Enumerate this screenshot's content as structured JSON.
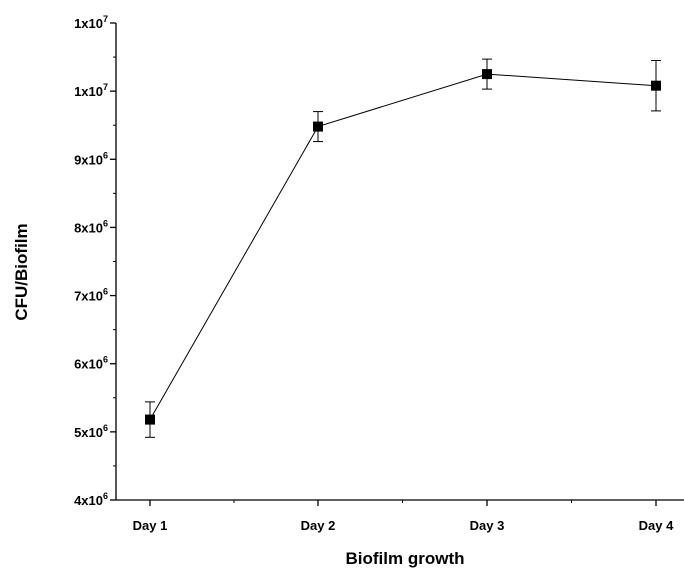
{
  "chart_data": {
    "type": "line",
    "title": "",
    "xlabel": "Biofilm growth",
    "ylabel": "CFU/Biofilm",
    "categories": [
      "Day 1",
      "Day 2",
      "Day 3",
      "Day 4"
    ],
    "series": [
      {
        "values": [
          5180000,
          9480000,
          10250000,
          10080000
        ],
        "error": [
          260000,
          220000,
          220000,
          370000
        ]
      }
    ],
    "ylim": [
      4000000,
      11000000
    ],
    "yticks": [
      {
        "value": 4000000,
        "base": "4x10",
        "exp": "6"
      },
      {
        "value": 5000000,
        "base": "5x10",
        "exp": "6"
      },
      {
        "value": 6000000,
        "base": "6x10",
        "exp": "6"
      },
      {
        "value": 7000000,
        "base": "7x10",
        "exp": "6"
      },
      {
        "value": 8000000,
        "base": "8x10",
        "exp": "6"
      },
      {
        "value": 9000000,
        "base": "9x10",
        "exp": "6"
      },
      {
        "value": 10000000,
        "base": "1x10",
        "exp": "7"
      },
      {
        "value": 11000000,
        "base": "1x10",
        "exp": "7"
      }
    ],
    "grid": false,
    "marker": "square",
    "line_color": "#000000",
    "marker_color": "#000000"
  }
}
